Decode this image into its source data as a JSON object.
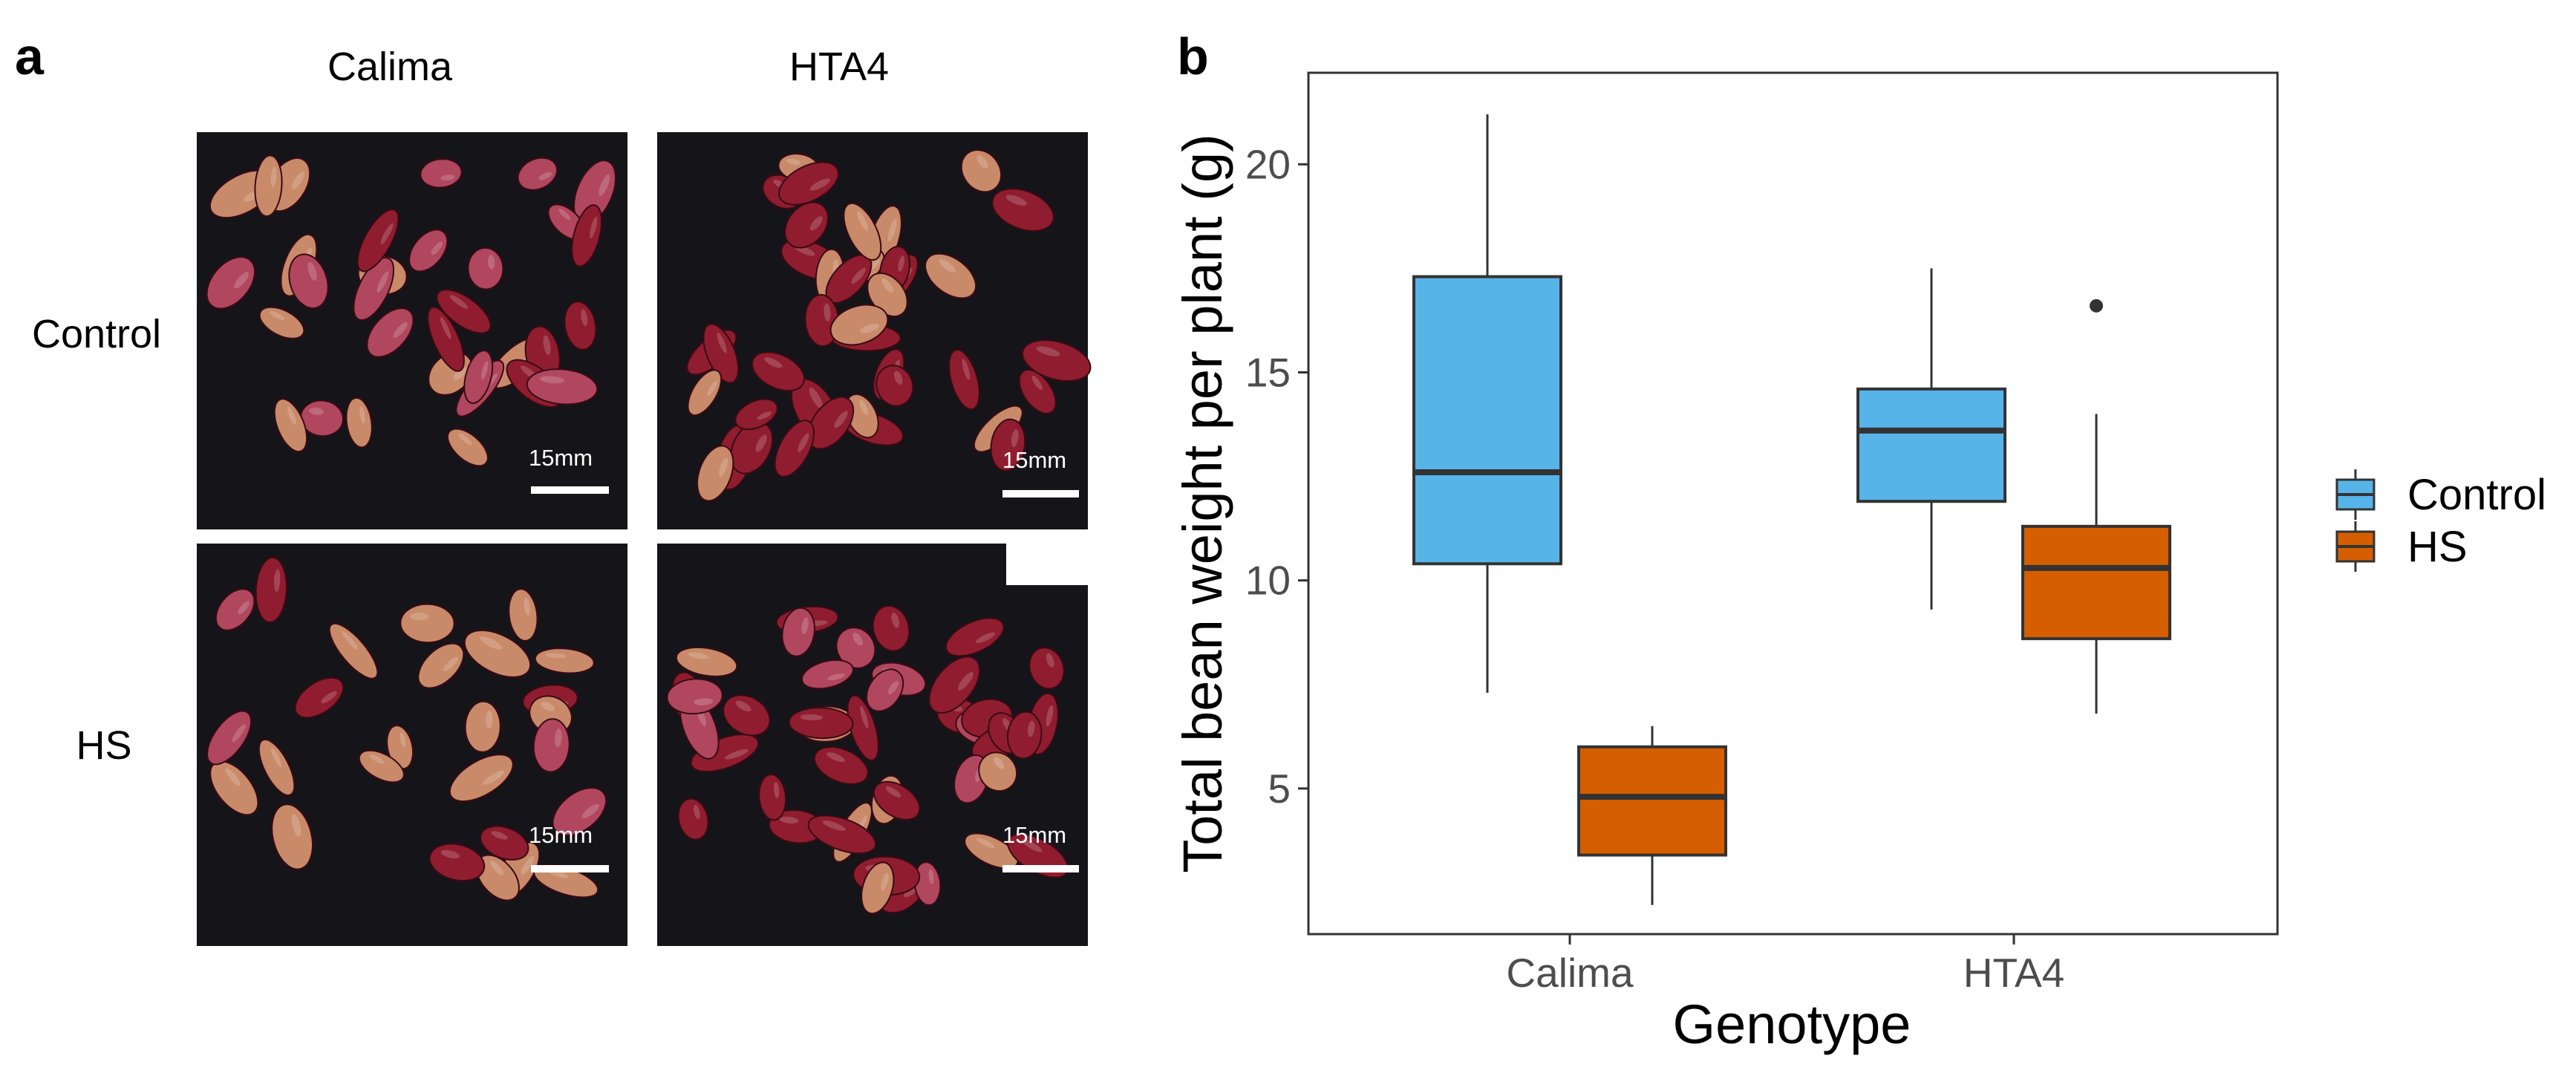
{
  "panel_a": {
    "label": "a",
    "column_labels": [
      "Calima",
      "HTA4"
    ],
    "row_labels": [
      "Control",
      "HS"
    ],
    "scale_bar_label": "15mm",
    "colors": {
      "background": "#151519",
      "bean_red": "#8f1d2f",
      "bean_speckled": "#b0475e",
      "bean_pale": "#c98a6a",
      "scale_bar": "#ffffff"
    }
  },
  "panel_b": {
    "label": "b"
  },
  "chart_data": {
    "type": "boxplot",
    "xlabel": "Genotype",
    "ylabel": "Total bean weight per plant (g)",
    "categories": [
      "Calima",
      "HTA4"
    ],
    "y_ticks": [
      5,
      10,
      15,
      20
    ],
    "ylim": [
      1.5,
      22.2
    ],
    "grid": false,
    "legend_position": "right",
    "series": [
      {
        "name": "Control",
        "color": "#56B4E9",
        "boxes": [
          {
            "category": "Calima",
            "whisker_low": 7.3,
            "q1": 10.4,
            "median": 12.6,
            "q3": 17.3,
            "whisker_high": 21.2,
            "outliers": []
          },
          {
            "category": "HTA4",
            "whisker_low": 9.3,
            "q1": 11.9,
            "median": 13.6,
            "q3": 14.6,
            "whisker_high": 17.5,
            "outliers": []
          }
        ]
      },
      {
        "name": "HS",
        "color": "#D55E00",
        "boxes": [
          {
            "category": "Calima",
            "whisker_low": 2.2,
            "q1": 3.4,
            "median": 4.8,
            "q3": 6.0,
            "whisker_high": 6.5,
            "outliers": []
          },
          {
            "category": "HTA4",
            "whisker_low": 6.8,
            "q1": 8.6,
            "median": 10.3,
            "q3": 11.3,
            "whisker_high": 14.0,
            "outliers": [
              16.6
            ]
          }
        ]
      }
    ]
  }
}
